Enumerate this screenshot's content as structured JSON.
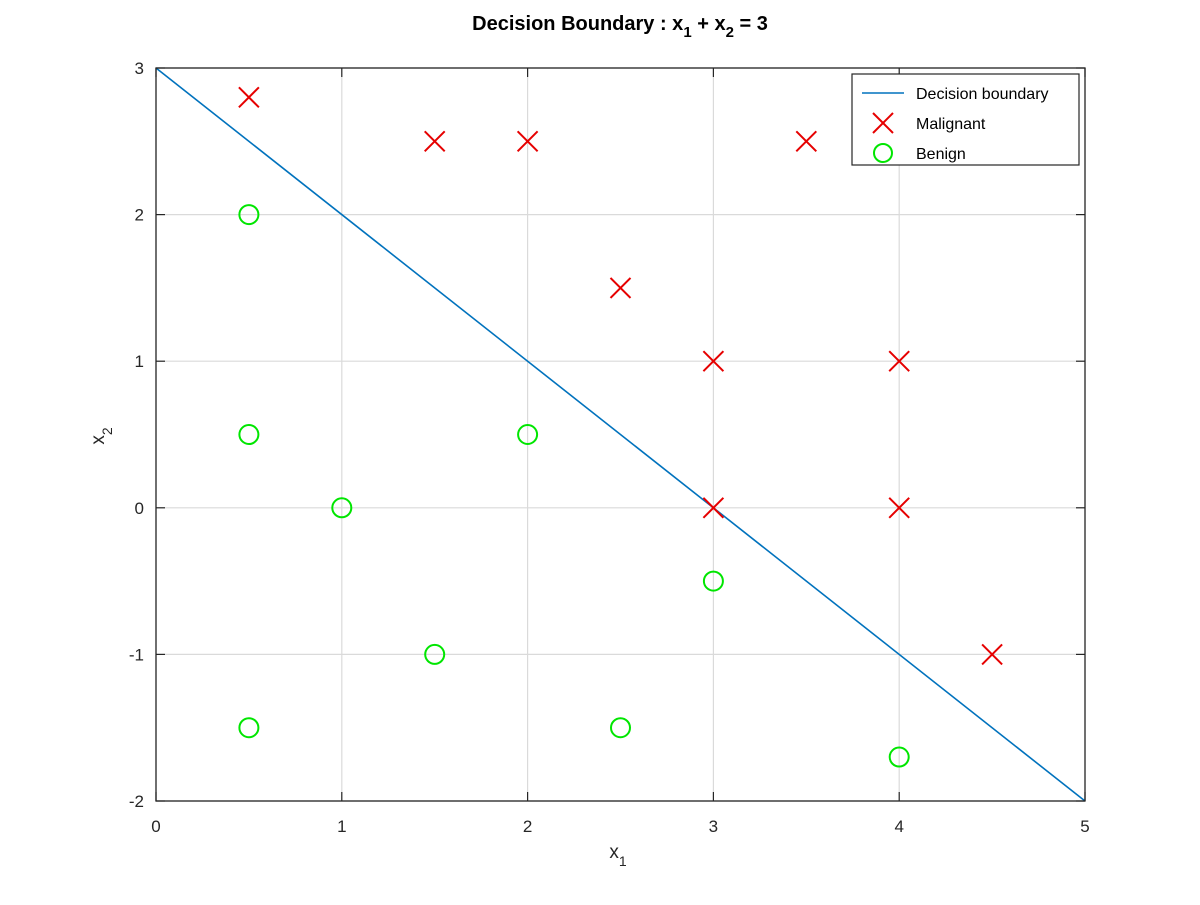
{
  "chart_data": {
    "type": "scatter",
    "title": {
      "text": "Decision Boundary : x",
      "sub1": "1",
      "mid": " + x",
      "sub2": "2",
      "end": " = 3"
    },
    "xlabel": {
      "text": "x",
      "sub": "1"
    },
    "ylabel": {
      "text": "x",
      "sub": "2"
    },
    "xlim": [
      0,
      5
    ],
    "ylim": [
      -2,
      3
    ],
    "xticks": [
      0,
      1,
      2,
      3,
      4,
      5
    ],
    "yticks": [
      -2,
      -1,
      0,
      1,
      2,
      3
    ],
    "grid": true,
    "legend_position": "top-right",
    "colors": {
      "boundary": "#0072bd",
      "malignant": "#e60000",
      "benign": "#00e600",
      "grid": "#dadada",
      "axes": "#262626"
    },
    "series": [
      {
        "name": "Decision boundary",
        "kind": "line",
        "x": [
          0,
          5
        ],
        "y": [
          3,
          -2
        ]
      },
      {
        "name": "Malignant",
        "kind": "marker-x",
        "points": [
          [
            0.5,
            2.8
          ],
          [
            1.5,
            2.5
          ],
          [
            2,
            2.5
          ],
          [
            3.5,
            2.5
          ],
          [
            2.5,
            1.5
          ],
          [
            3,
            1
          ],
          [
            4,
            1
          ],
          [
            3,
            0
          ],
          [
            4,
            0
          ],
          [
            4.5,
            -1
          ]
        ]
      },
      {
        "name": "Benign",
        "kind": "marker-o",
        "points": [
          [
            0.5,
            2
          ],
          [
            0.5,
            0.5
          ],
          [
            2,
            0.5
          ],
          [
            1,
            0
          ],
          [
            3,
            -0.5
          ],
          [
            1.5,
            -1
          ],
          [
            0.5,
            -1.5
          ],
          [
            2.5,
            -1.5
          ],
          [
            4,
            -1.7
          ]
        ]
      }
    ]
  }
}
